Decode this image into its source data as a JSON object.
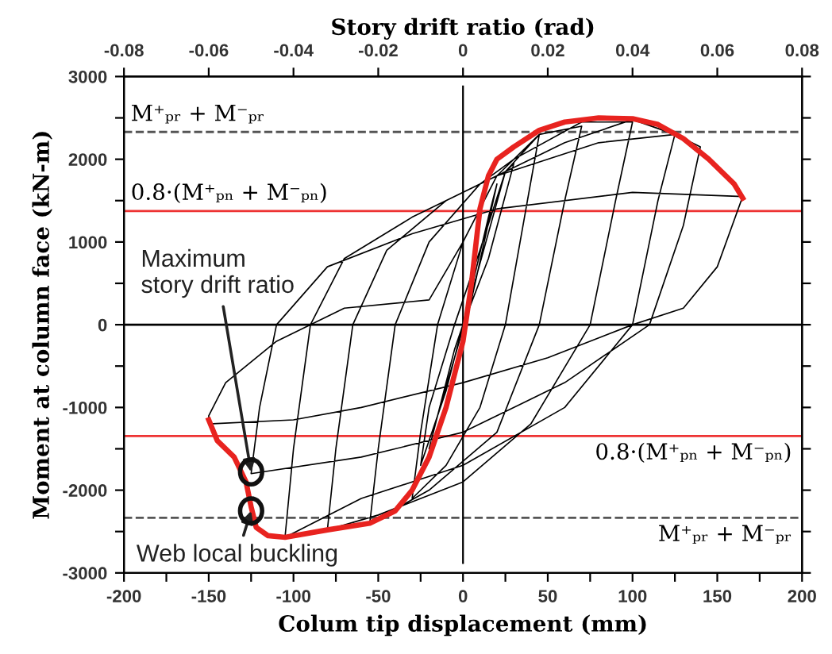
{
  "chart_data": {
    "type": "line",
    "x2label": "Story drift ratio (rad)",
    "xlabel": "Colum tip displacement (mm)",
    "ylabel": "Moment at column face (kN-m)",
    "xlim": [
      -200,
      200
    ],
    "ylim": [
      -3000,
      3000
    ],
    "x2lim": [
      -0.08,
      0.08
    ],
    "xticks": [
      -200,
      {
        "value": -175,
        "label": null
      },
      -150,
      {
        "value": -125,
        "label": null
      },
      -100,
      {
        "value": -75,
        "label": null
      },
      -50,
      {
        "value": -25,
        "label": null
      },
      0,
      {
        "value": 25,
        "label": null
      },
      50,
      {
        "value": 75,
        "label": null
      },
      100,
      {
        "value": 125,
        "label": null
      },
      150,
      {
        "value": 175,
        "label": null
      },
      200
    ],
    "yticks": [
      -3000,
      {
        "value": -2500,
        "label": null
      },
      -2000,
      {
        "value": -1500,
        "label": null
      },
      -1000,
      {
        "value": -500,
        "label": null
      },
      0,
      {
        "value": 500,
        "label": null
      },
      1000,
      {
        "value": 1500,
        "label": null
      },
      2000,
      {
        "value": 2500,
        "label": null
      },
      3000
    ],
    "x2ticks": [
      -0.08,
      -0.06,
      -0.04,
      -0.02,
      0,
      0.02,
      0.04,
      0.06,
      0.08
    ],
    "grid": false,
    "legend": false,
    "marker": "none",
    "line_style": "solid",
    "series": [
      {
        "color": "#000000",
        "x": [
          0,
          15,
          20,
          5,
          -5,
          -15,
          -20,
          -5,
          0,
          25,
          30,
          15,
          0,
          -10,
          -25,
          -20,
          -5,
          10,
          25,
          45,
          38,
          25,
          10,
          -10,
          -30,
          -25,
          -15,
          0,
          20,
          45,
          70,
          60,
          45,
          20,
          -20,
          -55,
          -50,
          -40,
          -20,
          10,
          30,
          70,
          100,
          90,
          75,
          40,
          0,
          -50,
          -80,
          -75,
          -65,
          -45,
          -10,
          30,
          60,
          100,
          125,
          115,
          100,
          60,
          0,
          -60,
          -105,
          -100,
          -90,
          -70,
          -30,
          20,
          80,
          125,
          140,
          130,
          110,
          60,
          0,
          -60,
          -125,
          -120,
          -110,
          -80,
          -30,
          20,
          100,
          165,
          150,
          130,
          100,
          50,
          0,
          -60,
          -100,
          -150,
          -150,
          -140,
          -110,
          -70,
          -20,
          0
        ],
        "values": [
          0,
          1300,
          1700,
          300,
          -400,
          -1100,
          -1500,
          -300,
          0,
          1850,
          1950,
          800,
          0,
          -800,
          -1700,
          -1000,
          0,
          900,
          1850,
          2300,
          1500,
          0,
          -1000,
          -1700,
          -2100,
          -1300,
          0,
          1000,
          1800,
          2300,
          2400,
          1500,
          0,
          -1300,
          -2000,
          -2400,
          -1500,
          0,
          1000,
          1700,
          2000,
          2450,
          2450,
          1500,
          0,
          -1200,
          -1900,
          -2300,
          -2480,
          -1500,
          0,
          900,
          1500,
          1900,
          2200,
          2480,
          2300,
          1500,
          0,
          -1000,
          -1700,
          -2100,
          -2570,
          -1500,
          0,
          800,
          1300,
          1800,
          2200,
          2300,
          2150,
          1200,
          0,
          -700,
          -1300,
          -1600,
          -1800,
          -1000,
          0,
          700,
          1100,
          1400,
          1600,
          1550,
          700,
          200,
          0,
          -400,
          -700,
          -1000,
          -1150,
          -1200,
          -1100,
          -700,
          -200,
          200,
          300,
          1000
        ]
      },
      {
        "color": "#e8231f",
        "x": [
          -150,
          -145,
          -135,
          -128,
          -125,
          -122,
          -115,
          -105,
          -80,
          -55,
          -40,
          -30,
          -20,
          -10,
          0,
          5,
          10,
          15,
          20,
          30,
          45,
          60,
          80,
          100,
          115,
          130,
          145,
          160,
          165
        ],
        "values": [
          -1150,
          -1400,
          -1600,
          -1900,
          -2200,
          -2450,
          -2550,
          -2570,
          -2480,
          -2400,
          -2250,
          -2000,
          -1600,
          -1000,
          -200,
          500,
          1400,
          1800,
          2000,
          2150,
          2350,
          2450,
          2500,
          2490,
          2420,
          2250,
          2000,
          1700,
          1530
        ]
      }
    ],
    "ref_lines": [
      {
        "axis": "y",
        "value": 2330,
        "label": "M⁺ₚᵣ + M⁻ₚᵣ",
        "color": "#555555",
        "line_style": "dashed"
      },
      {
        "axis": "y",
        "value": 1375,
        "label": "0.8·(M⁺ₚₙ + M⁻ₚₙ)",
        "color": "#ee3333",
        "line_style": "solid"
      },
      {
        "axis": "y",
        "value": -1345,
        "label": "0.8·(M⁺ₚₙ + M⁻ₚₙ)",
        "color": "#ee3333",
        "line_style": "solid"
      },
      {
        "axis": "y",
        "value": -2333,
        "label": "M⁺ₚᵣ + M⁻ₚᵣ",
        "color": "#555555",
        "line_style": "dashed"
      },
      {
        "axis": "y",
        "value": 0,
        "color": "#000000",
        "line_style": "solid"
      },
      {
        "axis": "x",
        "value": 0,
        "color": "#000000",
        "line_style": "solid"
      }
    ],
    "annotations": [
      {
        "text": "Maximum\nstory drift ratio",
        "x": -125,
        "y": -1780
      },
      {
        "text": "Web local buckling",
        "x": -125,
        "y": -2250
      }
    ]
  }
}
